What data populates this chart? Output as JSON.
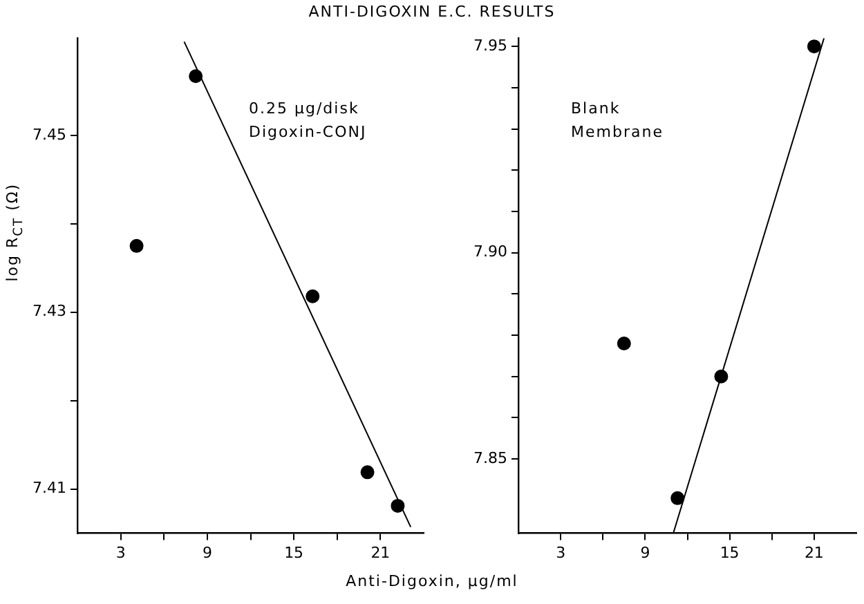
{
  "chart_data": [
    {
      "type": "scatter",
      "title": "ANTI-DIGOXIN E.C. RESULTS",
      "xlabel": "Anti-Digoxin, μg/ml",
      "ylabel": "log R$_{CT}$ (Ω)",
      "annotations": [
        "0.25 μg/disk",
        "Digoxin-CONJ"
      ],
      "xlim": [
        0,
        24
      ],
      "xticks": [
        3,
        {
          "value": 6,
          "label": null
        },
        9,
        {
          "value": 12,
          "label": null
        },
        15,
        {
          "value": 18,
          "label": null
        },
        21
      ],
      "ylim": [
        7.405,
        7.461
      ],
      "yticks": [
        7.41,
        {
          "value": 7.42,
          "label": null
        },
        7.43,
        {
          "value": 7.44,
          "label": null
        },
        7.45
      ],
      "grid": false,
      "legend": false,
      "marker": "circle",
      "series": [
        {
          "type": "scatter",
          "color": "#000000",
          "x": [
            4.1,
            8.2,
            16.3,
            20.1,
            22.2
          ],
          "values": [
            7.4375,
            7.4567,
            7.4318,
            7.4119,
            7.4081
          ]
        },
        {
          "type": "line",
          "color": "#000000",
          "marker": "none",
          "x": [
            7.4,
            23.1
          ],
          "values": [
            7.4606,
            7.4057
          ]
        }
      ]
    },
    {
      "type": "scatter",
      "annotations": [
        "Blank",
        "Membrane"
      ],
      "xlim": [
        0,
        24
      ],
      "xticks": [
        3,
        {
          "value": 6,
          "label": null
        },
        9,
        {
          "value": 12,
          "label": null
        },
        15,
        {
          "value": 18,
          "label": null
        },
        21
      ],
      "ylim": [
        7.832,
        7.952
      ],
      "yticks": [
        7.85,
        {
          "value": 7.86,
          "label": null
        },
        {
          "value": 7.87,
          "label": null
        },
        {
          "value": 7.88,
          "label": null
        },
        {
          "value": 7.89,
          "label": null
        },
        {
          "value": 7.9,
          "label": "7.90"
        },
        {
          "value": 7.91,
          "label": null
        },
        {
          "value": 7.92,
          "label": null
        },
        {
          "value": 7.93,
          "label": null
        },
        {
          "value": 7.94,
          "label": null
        },
        7.95
      ],
      "grid": false,
      "legend": false,
      "marker": "circle",
      "series": [
        {
          "type": "scatter",
          "color": "#000000",
          "x": [
            7.5,
            11.3,
            14.4,
            21
          ],
          "values": [
            7.878,
            7.8405,
            7.87,
            7.95
          ]
        },
        {
          "type": "line",
          "color": "#000000",
          "marker": "none",
          "x": [
            11,
            21.7
          ],
          "values": [
            7.832,
            7.952
          ]
        }
      ]
    }
  ]
}
